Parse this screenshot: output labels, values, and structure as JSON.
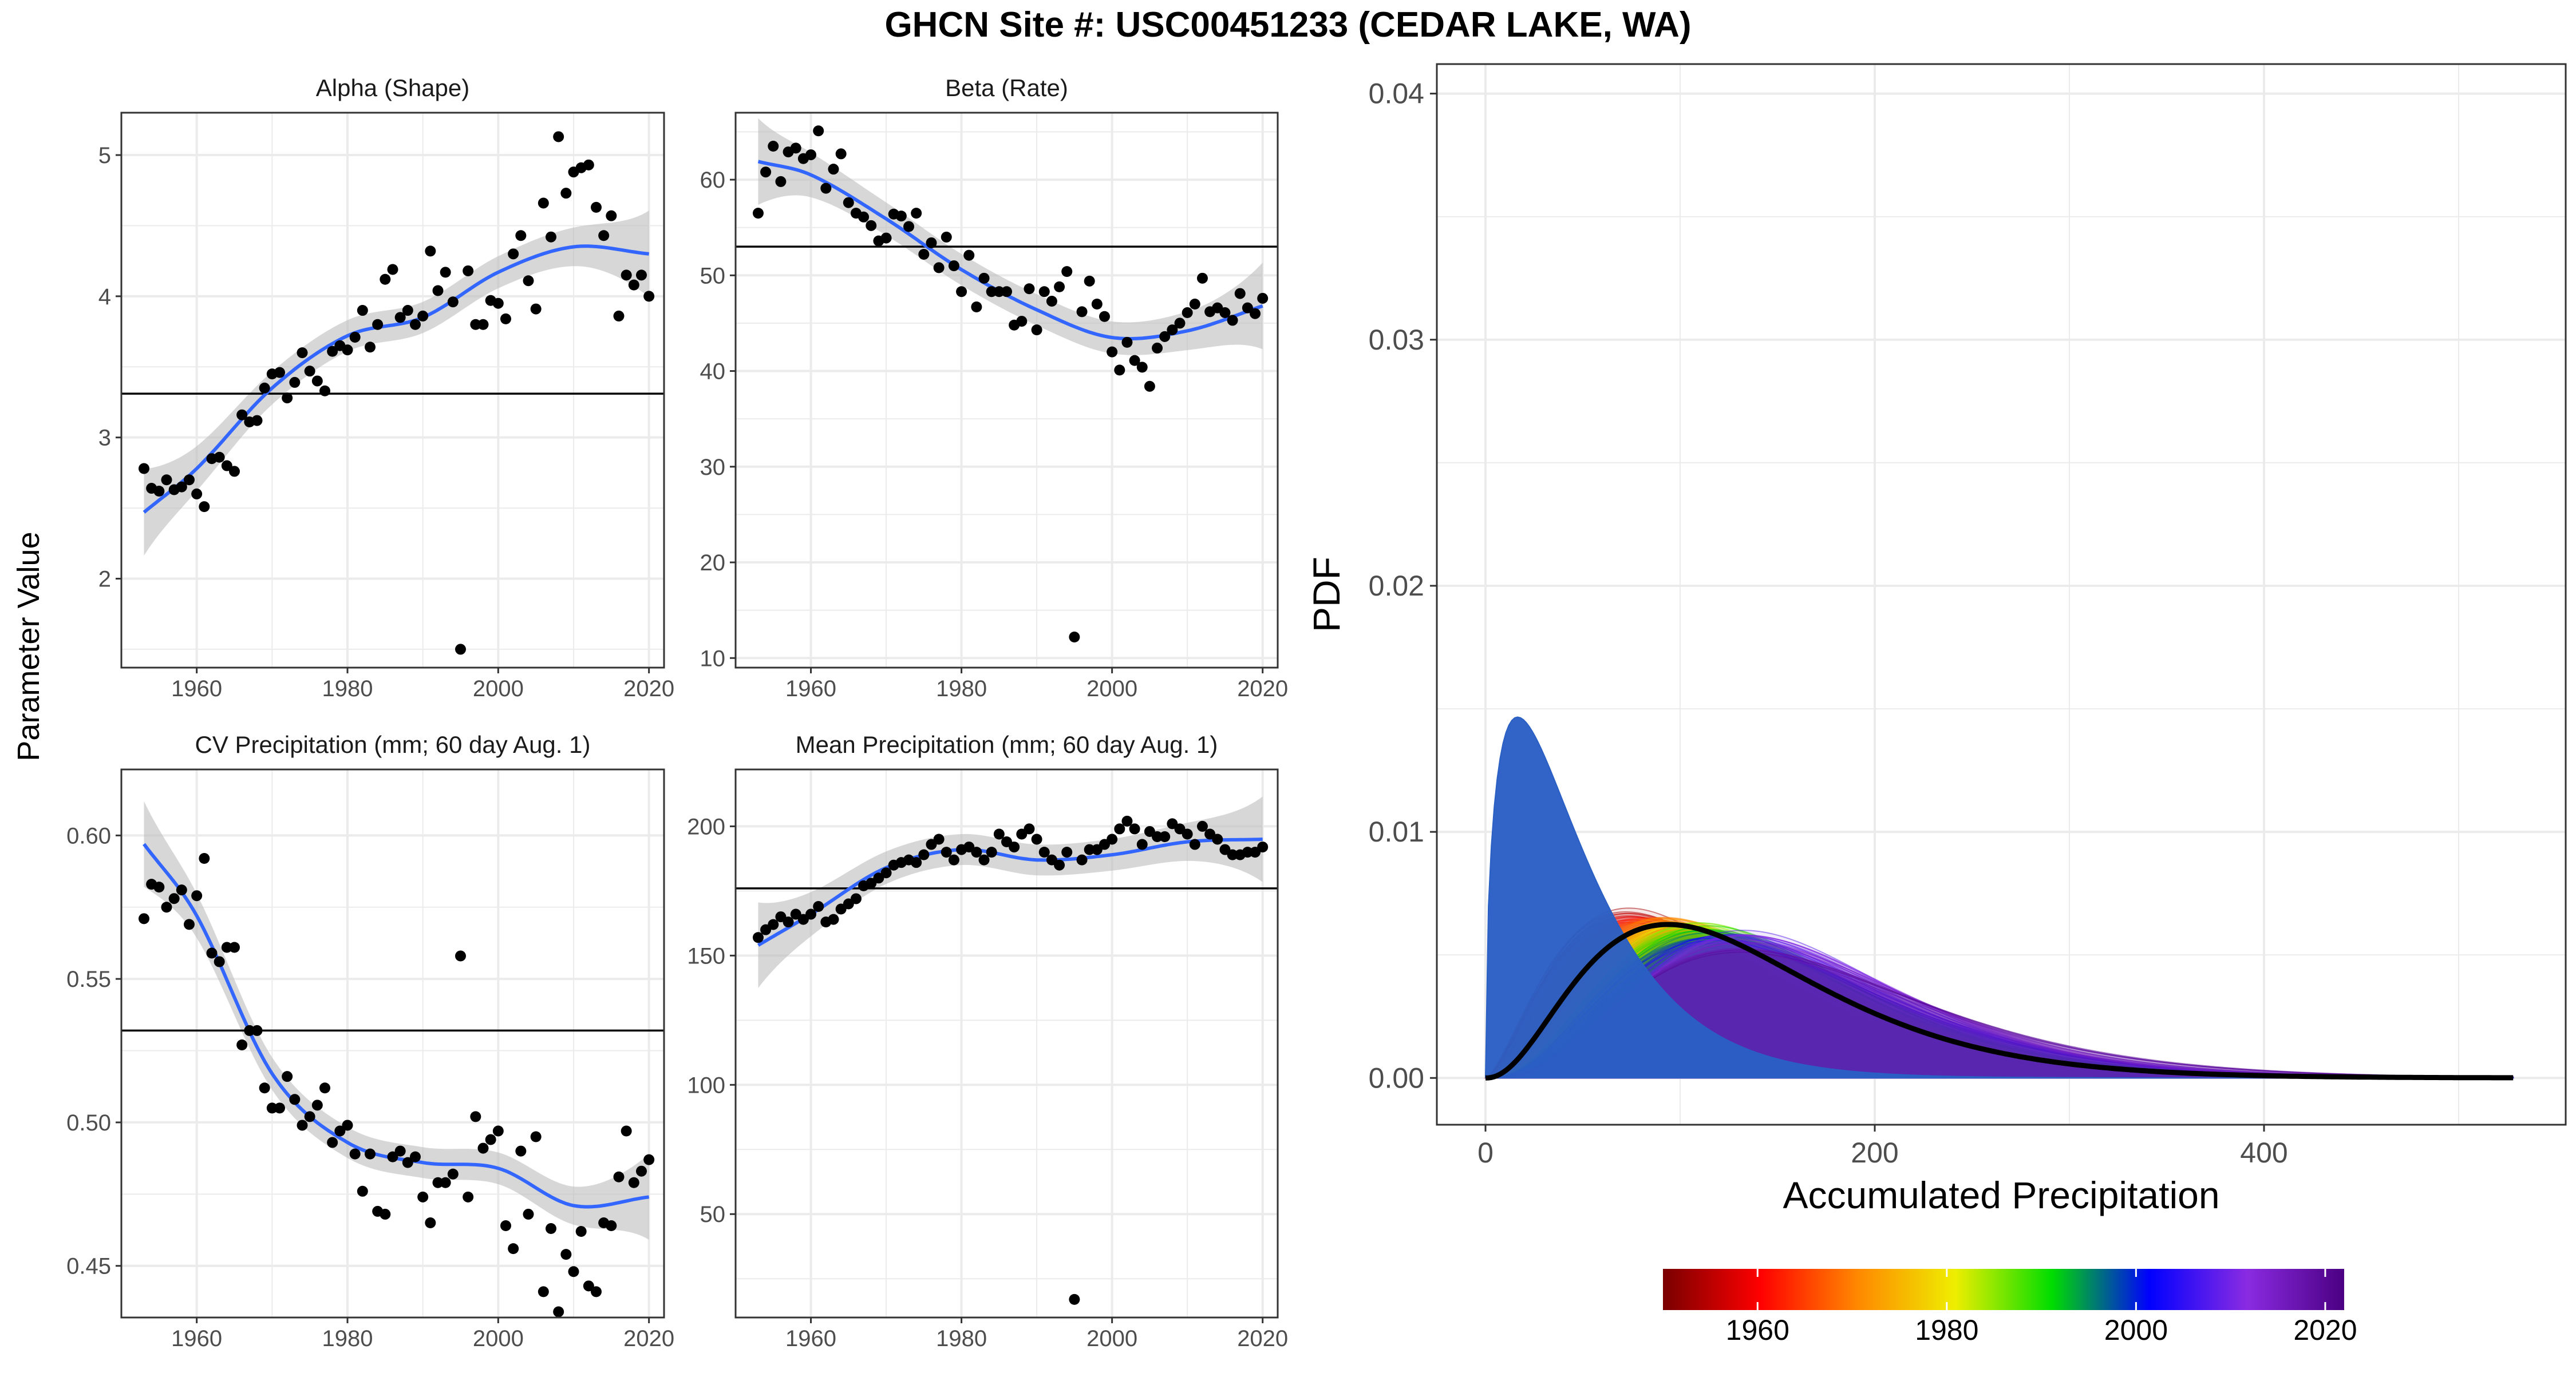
{
  "title": "GHCN Site #: USC00451233 (CEDAR LAKE, WA)",
  "y_axis_label": "Parameter Value",
  "colors": {
    "smooth": "#3366FF",
    "ribbon": "#bdbdbd",
    "points": "#000000",
    "grid": "#ebebeb",
    "frame": "#333333",
    "pdf_fill": "#2a5fc4"
  },
  "chart_data": [
    {
      "type": "scatter",
      "panel": "Alpha (Shape)",
      "title": "Alpha (Shape)",
      "xlim": [
        1950,
        2022
      ],
      "ylim": [
        1.37,
        5.3
      ],
      "xticks": [
        1960,
        1980,
        2000,
        2020
      ],
      "yticks": [
        2,
        3,
        4,
        5
      ],
      "hline": 3.31,
      "x": [
        1953,
        1954,
        1955,
        1956,
        1957,
        1958,
        1959,
        1960,
        1961,
        1962,
        1963,
        1964,
        1965,
        1966,
        1967,
        1968,
        1969,
        1970,
        1971,
        1972,
        1973,
        1974,
        1975,
        1976,
        1977,
        1978,
        1979,
        1980,
        1981,
        1982,
        1983,
        1984,
        1985,
        1986,
        1987,
        1988,
        1989,
        1990,
        1991,
        1992,
        1993,
        1994,
        1995,
        1996,
        1997,
        1998,
        1999,
        2000,
        2001,
        2002,
        2003,
        2004,
        2005,
        2006,
        2007,
        2008,
        2009,
        2010,
        2011,
        2012,
        2013,
        2014,
        2015,
        2016,
        2017,
        2018,
        2019,
        2020
      ],
      "y": [
        2.78,
        2.64,
        2.62,
        2.7,
        2.63,
        2.65,
        2.7,
        2.6,
        2.51,
        2.85,
        2.86,
        2.8,
        2.76,
        3.16,
        3.11,
        3.12,
        3.35,
        3.45,
        3.46,
        3.28,
        3.39,
        3.6,
        3.47,
        3.4,
        3.33,
        3.61,
        3.65,
        3.62,
        3.71,
        3.9,
        3.64,
        3.8,
        4.12,
        4.19,
        3.85,
        3.9,
        3.8,
        3.86,
        4.32,
        4.04,
        4.17,
        3.96,
        1.5,
        4.18,
        3.8,
        3.8,
        3.97,
        3.95,
        3.84,
        4.3,
        4.43,
        4.11,
        3.91,
        4.66,
        4.42,
        5.13,
        4.73,
        4.88,
        4.91,
        4.93,
        4.63,
        4.43,
        4.57,
        3.86,
        4.15,
        4.08,
        4.15,
        4.0
      ],
      "smooth": {
        "x": [
          1953,
          1960,
          1970,
          1980,
          1990,
          2000,
          2010,
          2020
        ],
        "y": [
          2.47,
          2.78,
          3.35,
          3.72,
          3.85,
          4.17,
          4.35,
          4.3
        ]
      }
    },
    {
      "type": "scatter",
      "panel": "Beta (Rate)",
      "title": "Beta (Rate)",
      "xlim": [
        1950,
        2022
      ],
      "ylim": [
        9,
        67
      ],
      "xticks": [
        1960,
        1980,
        2000,
        2020
      ],
      "yticks": [
        10,
        20,
        30,
        40,
        50,
        60
      ],
      "hline": 53,
      "x": [
        1953,
        1954,
        1955,
        1956,
        1957,
        1958,
        1959,
        1960,
        1961,
        1962,
        1963,
        1964,
        1965,
        1966,
        1967,
        1968,
        1969,
        1970,
        1971,
        1972,
        1973,
        1974,
        1975,
        1976,
        1977,
        1978,
        1979,
        1980,
        1981,
        1982,
        1983,
        1984,
        1985,
        1986,
        1987,
        1988,
        1989,
        1990,
        1991,
        1992,
        1993,
        1994,
        1995,
        1996,
        1997,
        1998,
        1999,
        2000,
        2001,
        2002,
        2003,
        2004,
        2005,
        2006,
        2007,
        2008,
        2009,
        2010,
        2011,
        2012,
        2013,
        2014,
        2015,
        2016,
        2017,
        2018,
        2019,
        2020
      ],
      "y": [
        56.5,
        60.8,
        63.5,
        59.8,
        62.9,
        63.3,
        62.2,
        62.6,
        65.1,
        59.1,
        61.1,
        62.7,
        57.6,
        56.5,
        56.1,
        55.2,
        53.6,
        53.9,
        56.4,
        56.2,
        55.1,
        56.5,
        52.2,
        53.4,
        50.8,
        54.0,
        51.0,
        48.3,
        52.1,
        46.7,
        49.7,
        48.3,
        48.3,
        48.3,
        44.8,
        45.2,
        48.6,
        44.3,
        48.3,
        47.3,
        48.8,
        50.4,
        12.2,
        46.2,
        49.4,
        47.0,
        45.7,
        42.0,
        40.1,
        43.0,
        41.1,
        40.4,
        38.4,
        42.4,
        43.6,
        44.3,
        45.0,
        46.1,
        47.0,
        49.7,
        46.2,
        46.6,
        46.1,
        45.3,
        48.1,
        46.6,
        46.0,
        47.6
      ],
      "smooth": {
        "x": [
          1953,
          1960,
          1970,
          1980,
          1990,
          2000,
          2010,
          2020
        ],
        "y": [
          61.9,
          60.5,
          55.9,
          50.6,
          46.4,
          43.5,
          44.2,
          46.8
        ]
      }
    },
    {
      "type": "scatter",
      "panel": "CV Precipitation (mm; 60 day Aug. 1)",
      "title": "CV Precipitation (mm; 60 day Aug. 1)",
      "xlim": [
        1950,
        2022
      ],
      "ylim": [
        0.432,
        0.623
      ],
      "xticks": [
        1960,
        1980,
        2000,
        2020
      ],
      "yticks": [
        0.45,
        0.5,
        0.55,
        0.6
      ],
      "hline": 0.532,
      "x": [
        1953,
        1954,
        1955,
        1956,
        1957,
        1958,
        1959,
        1960,
        1961,
        1962,
        1963,
        1964,
        1965,
        1966,
        1967,
        1968,
        1969,
        1970,
        1971,
        1972,
        1973,
        1974,
        1975,
        1976,
        1977,
        1978,
        1979,
        1980,
        1981,
        1982,
        1983,
        1984,
        1985,
        1986,
        1987,
        1988,
        1989,
        1990,
        1991,
        1992,
        1993,
        1994,
        1995,
        1996,
        1997,
        1998,
        1999,
        2000,
        2001,
        2002,
        2003,
        2004,
        2005,
        2006,
        2007,
        2008,
        2009,
        2010,
        2011,
        2012,
        2013,
        2014,
        2015,
        2016,
        2017,
        2018,
        2019,
        2020
      ],
      "y": [
        0.571,
        0.583,
        0.582,
        0.575,
        0.578,
        0.581,
        0.569,
        0.579,
        0.592,
        0.559,
        0.556,
        0.561,
        0.561,
        0.527,
        0.532,
        0.532,
        0.512,
        0.505,
        0.505,
        0.516,
        0.508,
        0.499,
        0.502,
        0.506,
        0.512,
        0.493,
        0.497,
        0.499,
        0.489,
        0.476,
        0.489,
        0.469,
        0.468,
        0.488,
        0.49,
        0.486,
        0.488,
        0.474,
        0.465,
        0.479,
        0.479,
        0.482,
        0.558,
        0.474,
        0.502,
        0.491,
        0.494,
        0.497,
        0.464,
        0.456,
        0.49,
        0.468,
        0.495,
        0.441,
        0.463,
        0.434,
        0.454,
        0.448,
        0.462,
        0.443,
        0.441,
        0.465,
        0.464,
        0.481,
        0.497,
        0.479,
        0.483,
        0.487
      ],
      "smooth": {
        "x": [
          1953,
          1960,
          1970,
          1980,
          1990,
          2000,
          2010,
          2020
        ],
        "y": [
          0.597,
          0.572,
          0.517,
          0.493,
          0.486,
          0.484,
          0.471,
          0.474
        ]
      }
    },
    {
      "type": "scatter",
      "panel": "Mean Precipitation (mm; 60 day Aug. 1)",
      "title": "Mean Precipitation (mm; 60 day Aug. 1)",
      "xlim": [
        1950,
        2022
      ],
      "ylim": [
        10,
        222
      ],
      "xticks": [
        1960,
        1980,
        2000,
        2020
      ],
      "yticks": [
        50,
        100,
        150,
        200
      ],
      "hline": 176,
      "x": [
        1953,
        1954,
        1955,
        1956,
        1957,
        1958,
        1959,
        1960,
        1961,
        1962,
        1963,
        1964,
        1965,
        1966,
        1967,
        1968,
        1969,
        1970,
        1971,
        1972,
        1973,
        1974,
        1975,
        1976,
        1977,
        1978,
        1979,
        1980,
        1981,
        1982,
        1983,
        1984,
        1985,
        1986,
        1987,
        1988,
        1989,
        1990,
        1991,
        1992,
        1993,
        1994,
        1995,
        1996,
        1997,
        1998,
        1999,
        2000,
        2001,
        2002,
        2003,
        2004,
        2005,
        2006,
        2007,
        2008,
        2009,
        2010,
        2011,
        2012,
        2013,
        2014,
        2015,
        2016,
        2017,
        2018,
        2019,
        2020
      ],
      "y": [
        157,
        160,
        162,
        165,
        163,
        166,
        164,
        166,
        169,
        163,
        164,
        168,
        170,
        172,
        177,
        178,
        180,
        182,
        185,
        186,
        187,
        186,
        189,
        193,
        195,
        190,
        187,
        191,
        192,
        190,
        187,
        190,
        197,
        194,
        192,
        197,
        199,
        195,
        190,
        187,
        185,
        190,
        17,
        187,
        191,
        191,
        193,
        195,
        199,
        202,
        199,
        193,
        198,
        196,
        196,
        201,
        199,
        197,
        193,
        200,
        197,
        195,
        191,
        189,
        189,
        190,
        190,
        192
      ],
      "smooth": {
        "x": [
          1953,
          1960,
          1970,
          1980,
          1990,
          2000,
          2010,
          2020
        ],
        "y": [
          154,
          166,
          184,
          191,
          187,
          189,
          194,
          195
        ]
      }
    },
    {
      "type": "area",
      "panel": "PDF",
      "xlabel": "Accumulated Precipitation",
      "ylabel": "PDF",
      "xlim": [
        -25,
        555
      ],
      "ylim": [
        -0.0019,
        0.0412
      ],
      "xticks": [
        0,
        200,
        400
      ],
      "yticks": [
        0.0,
        0.01,
        0.02,
        0.03,
        0.04
      ],
      "ytick_labels": [
        "0.00",
        "0.01",
        "0.02",
        "0.03",
        "0.04"
      ],
      "spike_year": 1995,
      "colorbar": {
        "range": [
          1950,
          2022
        ],
        "ticks": [
          1960,
          1980,
          2000,
          2020
        ],
        "stops": [
          "#7a0000",
          "#ff0000",
          "#ff8800",
          "#eeee00",
          "#00dd00",
          "#0000ff",
          "#8a2be2",
          "#4b0082"
        ]
      }
    }
  ]
}
